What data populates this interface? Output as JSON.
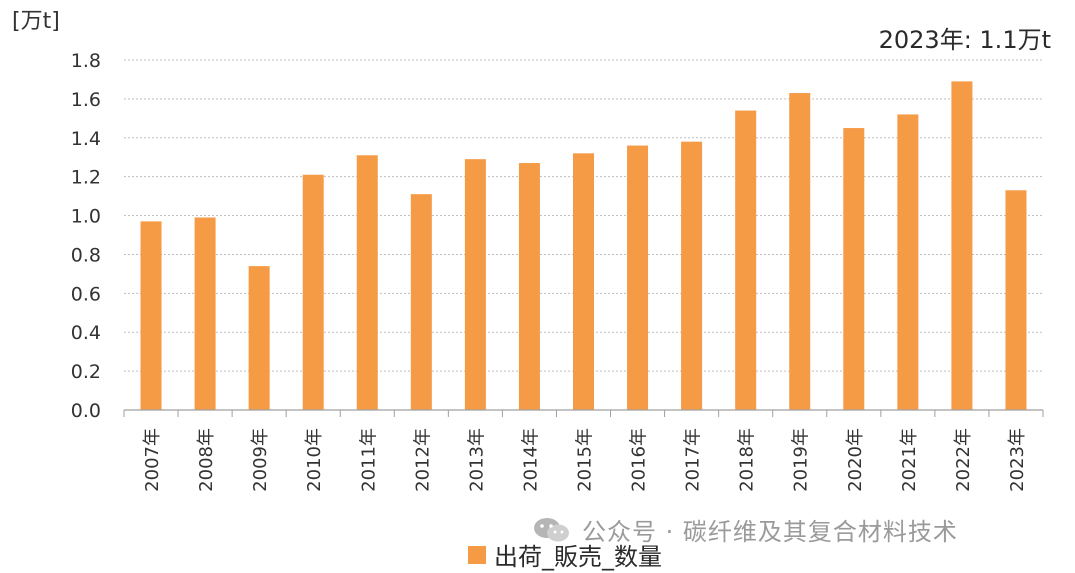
{
  "chart_data": {
    "type": "bar",
    "ylabel": "[万t]",
    "ylim": [
      0,
      1.8
    ],
    "yticks": [
      "0.0",
      "0.2",
      "0.4",
      "0.6",
      "0.8",
      "1.0",
      "1.2",
      "1.4",
      "1.6",
      "1.8"
    ],
    "grid": true,
    "annotation": "2023年: 1.1万t",
    "legend_position": "bottom",
    "categories": [
      "2007年",
      "2008年",
      "2009年",
      "2010年",
      "2011年",
      "2012年",
      "2013年",
      "2014年",
      "2015年",
      "2016年",
      "2017年",
      "2018年",
      "2019年",
      "2020年",
      "2021年",
      "2022年",
      "2023年"
    ],
    "series": [
      {
        "name": "出荷_販売_数量",
        "color": "#f59a45",
        "values": [
          0.97,
          0.99,
          0.74,
          1.21,
          1.31,
          1.11,
          1.29,
          1.27,
          1.32,
          1.36,
          1.38,
          1.54,
          1.63,
          1.45,
          1.52,
          1.69,
          1.13
        ]
      }
    ]
  },
  "watermark": {
    "icon": "wechat-icon",
    "text": "公众号 · 碳纤维及其复合材料技术"
  }
}
